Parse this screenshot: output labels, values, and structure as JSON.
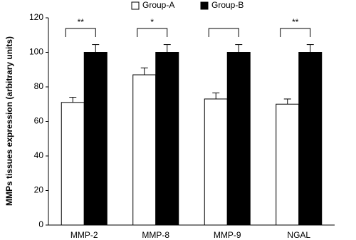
{
  "chart_data": {
    "type": "bar",
    "y_label": "MMPs tissues expression (arbitrary units)",
    "categories": [
      "MMP-2",
      "MMP-8",
      "MMP-9",
      "NGAL"
    ],
    "series": [
      {
        "name": "Group-A",
        "color": "#ffffff",
        "values": [
          71,
          87,
          73,
          70
        ],
        "errors": [
          3,
          4,
          3.5,
          3
        ]
      },
      {
        "name": "Group-B",
        "color": "#000000",
        "values": [
          100,
          100,
          100,
          100
        ],
        "errors": [
          4.5,
          4.5,
          4.5,
          4.5
        ]
      }
    ],
    "significance": [
      "**",
      "*",
      null,
      "**"
    ],
    "ylim": [
      0,
      120
    ],
    "yticks": [
      0,
      20,
      40,
      60,
      80,
      100,
      120
    ],
    "legend": "top"
  }
}
